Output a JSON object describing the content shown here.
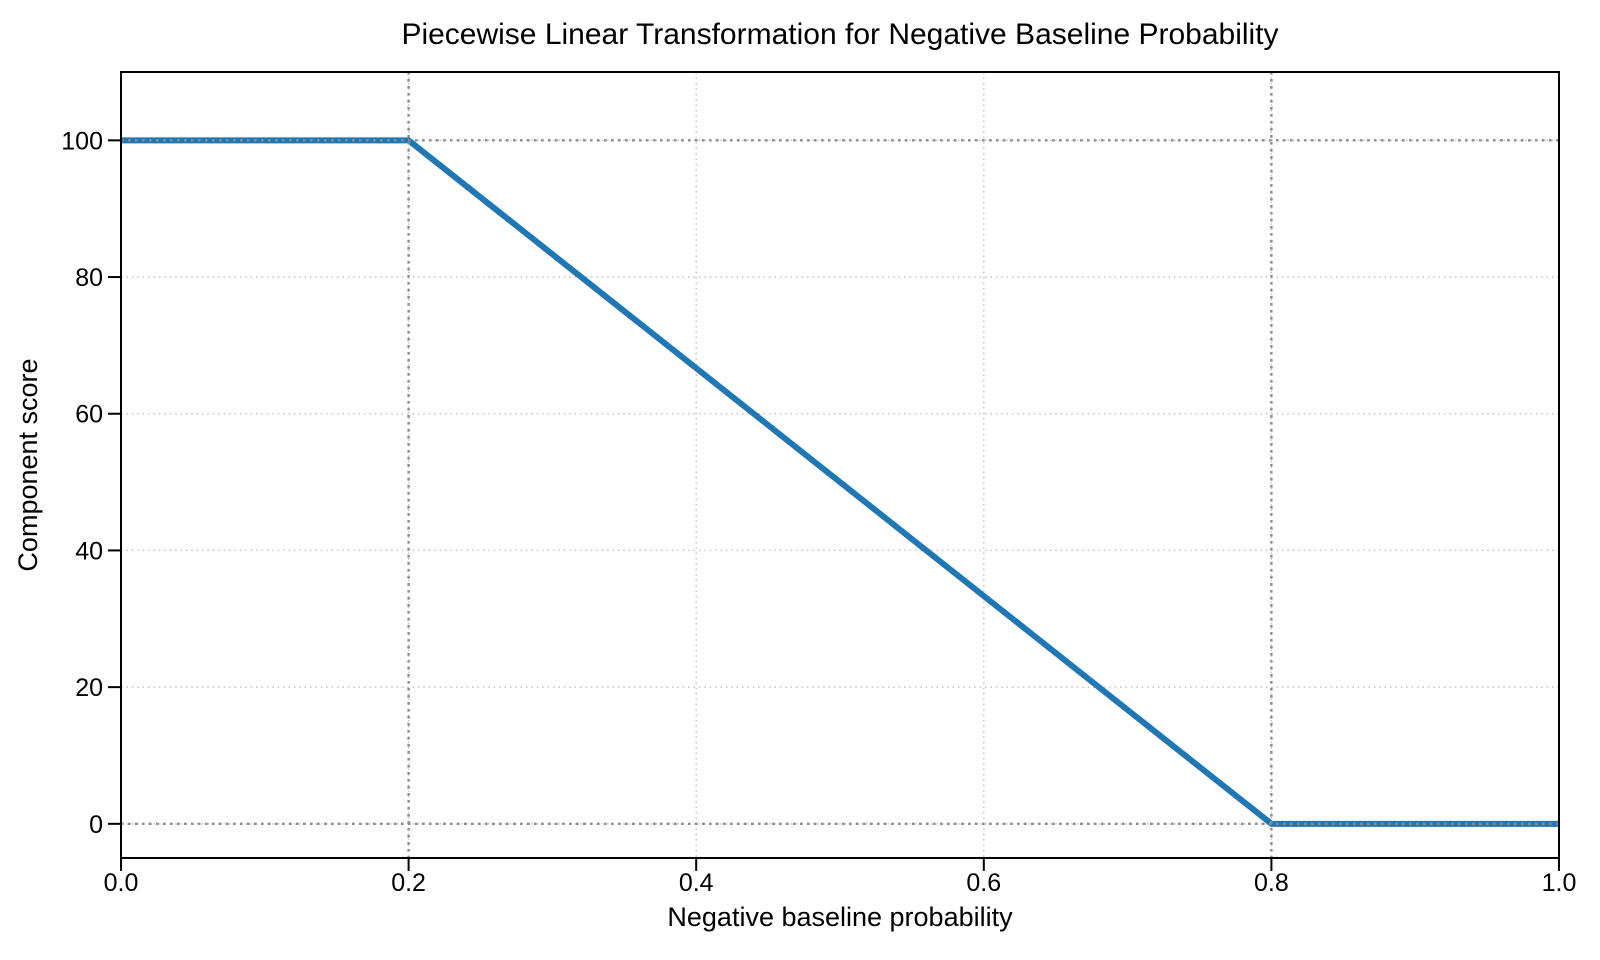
{
  "figure": {
    "background": "#ffffff",
    "text_color": "#000000",
    "spine_color": "#000000"
  },
  "chart_data": {
    "type": "line",
    "title": "Piecewise Linear Transformation for Negative Baseline Probability",
    "xlabel": "Negative baseline probability",
    "ylabel": "Component score",
    "xlim": [
      0,
      1
    ],
    "ylim": [
      -5,
      110
    ],
    "xticks": {
      "values": [
        0,
        0.2,
        0.4,
        0.6,
        0.8,
        1.0
      ],
      "labels": [
        "0.0",
        "0.2",
        "0.4",
        "0.6",
        "0.8",
        "1.0"
      ]
    },
    "yticks": {
      "values": [
        0,
        20,
        40,
        60,
        80,
        100
      ],
      "labels": [
        "0",
        "20",
        "40",
        "60",
        "80",
        "100"
      ]
    },
    "grid": {
      "show": true,
      "linestyle": "dotted",
      "color": "#c6c6c6"
    },
    "reference_lines": {
      "color": "#8c8c8c",
      "linestyle": "dotted",
      "x_values": [
        0.2,
        0.8
      ],
      "y_values": [
        0,
        100
      ]
    },
    "series": [
      {
        "name": "component-score-curve",
        "color": "#1f77b4",
        "points": [
          [
            0.0,
            100
          ],
          [
            0.2,
            100
          ],
          [
            0.8,
            0
          ],
          [
            1.0,
            0
          ]
        ]
      }
    ],
    "legend": {
      "show": false
    }
  }
}
